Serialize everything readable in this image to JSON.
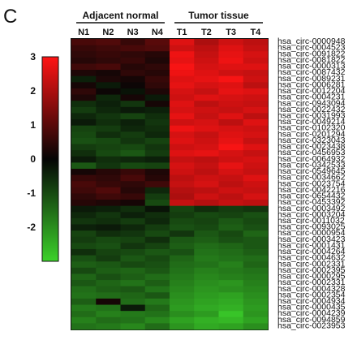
{
  "panel_label": "C",
  "chart_data": {
    "type": "heatmap",
    "title": "",
    "groups": [
      {
        "label": "Adjacent normal",
        "columns": [
          "N1",
          "N2",
          "N3",
          "N4"
        ]
      },
      {
        "label": "Tumor tissue",
        "columns": [
          "T1",
          "T2",
          "T3",
          "T4"
        ]
      }
    ],
    "columns": [
      "N1",
      "N2",
      "N3",
      "N4",
      "T1",
      "T2",
      "T3",
      "T4"
    ],
    "row_labels": [
      "hsa_circ-0000948",
      "hsa_circ-0004523",
      "hsa_circ-0091822",
      "hsa_circ-0081822",
      "hsa_circ-0000313",
      "hsa_circ-0087432",
      "hsa_circ-0089231",
      "hsa_circ-0006281",
      "hsa_circ-0012204",
      "hsa_circ-0004231",
      "hsa_circ-0943094",
      "hsa_circ-0022432",
      "hsa_circ-0031993",
      "hsa_circ-0049214",
      "hsa_circ-0102320",
      "hsa_circ-0201294",
      "hsa_circ-0323043",
      "hsa_circ-0023438",
      "hsa_circ-0456953",
      "hsa_circ-0064932",
      "hsa_circ-0342533",
      "hsa_circ-0549645",
      "hsa_circ-0034662",
      "hsa_circ-0023754",
      "hsa_circ-0042216",
      "hsa_circ-0654432",
      "hsa_circ-0453392",
      "hsa_circ-0003492",
      "hsa_circ-0003204",
      "hsa_circ-0011032",
      "hsa_circ-0093025",
      "hsa_circ-0000954",
      "hsa_circ-0003423",
      "hsa_circ-0001431",
      "hsa_circ-0004264",
      "hsa_circ-0004632",
      "hsa_circ-0002331",
      "hsa_circ-0002395",
      "hsa_circ-0000295",
      "hsa_circ-0002331",
      "hsa_circ-0004328",
      "hsa_circ-0002354",
      "hsa_circ-0004934",
      "hsa_circ-0000435",
      "hsa_circ-0004239",
      "hsa_circ-0094859",
      "hsa_circ-0023953"
    ],
    "values": [
      [
        0.8,
        0.9,
        0.6,
        1.0,
        2.6,
        2.0,
        2.4,
        2.2
      ],
      [
        0.6,
        0.7,
        0.8,
        0.9,
        2.4,
        2.2,
        2.6,
        2.3
      ],
      [
        0.5,
        0.6,
        0.5,
        0.4,
        2.8,
        2.3,
        2.7,
        2.5
      ],
      [
        0.4,
        0.5,
        0.6,
        0.3,
        2.7,
        2.4,
        2.8,
        2.4
      ],
      [
        0.7,
        0.8,
        0.4,
        0.5,
        2.9,
        2.5,
        2.6,
        2.6
      ],
      [
        0.3,
        0.2,
        0.5,
        0.4,
        2.8,
        2.6,
        2.4,
        2.3
      ],
      [
        -0.4,
        0.3,
        0.2,
        0.6,
        2.6,
        2.7,
        2.9,
        2.4
      ],
      [
        0.2,
        -0.3,
        0.1,
        0.5,
        2.7,
        2.5,
        2.6,
        2.2
      ],
      [
        0.5,
        0.1,
        -0.2,
        0.3,
        2.5,
        2.3,
        2.7,
        2.6
      ],
      [
        0.3,
        -0.5,
        0.2,
        -0.3,
        2.4,
        2.6,
        2.5,
        2.4
      ],
      [
        -0.6,
        -0.4,
        -0.7,
        0.2,
        2.6,
        2.2,
        2.4,
        2.3
      ],
      [
        -0.8,
        -0.5,
        -0.3,
        -0.4,
        2.5,
        2.4,
        2.3,
        2.5
      ],
      [
        -0.5,
        -0.7,
        -0.9,
        -0.6,
        2.7,
        2.3,
        2.6,
        2.2
      ],
      [
        -0.3,
        -0.6,
        -0.4,
        -0.7,
        2.4,
        2.5,
        2.2,
        2.6
      ],
      [
        -0.9,
        -0.8,
        -0.5,
        -0.6,
        2.8,
        2.6,
        2.5,
        2.4
      ],
      [
        -1.0,
        -0.6,
        -0.8,
        -0.5,
        2.5,
        2.3,
        2.6,
        2.5
      ],
      [
        -1.1,
        -1.0,
        -0.7,
        -0.9,
        2.6,
        2.4,
        2.7,
        2.3
      ],
      [
        -0.8,
        -0.9,
        -1.0,
        -0.7,
        2.4,
        2.5,
        2.9,
        2.6
      ],
      [
        -0.6,
        -1.0,
        -1.2,
        -0.8,
        2.6,
        2.7,
        2.5,
        2.3
      ],
      [
        -0.3,
        -0.6,
        -0.5,
        -0.4,
        2.3,
        2.2,
        2.4,
        2.5
      ],
      [
        -1.2,
        -0.7,
        -1.0,
        -0.9,
        2.5,
        2.3,
        2.7,
        2.4
      ],
      [
        0.2,
        0.4,
        0.6,
        0.3,
        2.4,
        2.2,
        2.5,
        2.3
      ],
      [
        0.6,
        0.5,
        0.8,
        0.4,
        2.2,
        2.4,
        2.3,
        2.6
      ],
      [
        0.8,
        0.6,
        0.5,
        0.7,
        2.3,
        2.5,
        2.2,
        2.4
      ],
      [
        0.7,
        0.9,
        0.4,
        -0.5,
        2.1,
        2.2,
        2.4,
        2.3
      ],
      [
        0.5,
        0.7,
        0.6,
        -0.8,
        2.0,
        2.4,
        2.2,
        2.5
      ],
      [
        0.4,
        0.3,
        0.2,
        -1.0,
        2.3,
        2.1,
        2.3,
        2.2
      ],
      [
        -0.3,
        -0.4,
        -0.6,
        -0.2,
        -0.9,
        -0.6,
        -0.8,
        -0.7
      ],
      [
        -0.5,
        -0.7,
        -0.4,
        -0.6,
        -0.8,
        -1.0,
        -0.9,
        -1.1
      ],
      [
        -0.7,
        -0.6,
        -0.8,
        -0.5,
        -1.0,
        -0.9,
        -1.2,
        -1.0
      ],
      [
        -0.4,
        -0.3,
        -0.5,
        -0.8,
        -1.1,
        -1.0,
        -1.3,
        -1.1
      ],
      [
        -0.9,
        -0.6,
        -0.7,
        -1.0,
        -0.7,
        -1.2,
        -1.0,
        -1.4
      ],
      [
        -0.8,
        -1.0,
        -0.9,
        -0.6,
        -1.2,
        -1.3,
        -1.1,
        -1.2
      ],
      [
        -1.0,
        -1.1,
        -0.7,
        -0.9,
        -1.3,
        -1.5,
        -1.4,
        -1.2
      ],
      [
        -0.6,
        -0.9,
        -1.0,
        -1.2,
        -1.1,
        -1.6,
        -1.5,
        -1.3
      ],
      [
        -1.1,
        -0.8,
        -1.2,
        -1.0,
        -1.4,
        -1.7,
        -1.6,
        -1.5
      ],
      [
        -1.3,
        -1.2,
        -1.0,
        -1.1,
        -1.5,
        -1.6,
        -1.8,
        -1.4
      ],
      [
        -1.0,
        -1.3,
        -1.4,
        -1.2,
        -1.6,
        -1.8,
        -1.7,
        -1.6
      ],
      [
        -1.4,
        -1.1,
        -1.3,
        -1.5,
        -1.7,
        -1.9,
        -1.8,
        -1.7
      ],
      [
        -1.2,
        -1.4,
        -1.6,
        -1.3,
        -1.8,
        -2.0,
        -2.1,
        -1.8
      ],
      [
        -1.5,
        -1.3,
        -1.2,
        -1.6,
        -1.9,
        -2.1,
        -2.0,
        -1.9
      ],
      [
        -1.6,
        -1.5,
        -1.4,
        -1.2,
        -2.0,
        -2.2,
        -2.3,
        -2.0
      ],
      [
        -1.3,
        0.2,
        -1.5,
        -1.7,
        -2.1,
        -2.3,
        -2.4,
        -2.1
      ],
      [
        -1.7,
        -1.6,
        -0.3,
        -1.4,
        -2.2,
        -2.4,
        -2.5,
        -2.2
      ],
      [
        -1.5,
        -1.8,
        -1.7,
        -1.6,
        -2.0,
        -2.2,
        -2.8,
        -2.1
      ],
      [
        -1.8,
        -1.5,
        -1.6,
        -1.9,
        -2.3,
        -2.5,
        -2.6,
        -2.3
      ],
      [
        -1.6,
        -1.7,
        -1.9,
        -1.5,
        -2.1,
        -2.4,
        -2.3,
        -2.0
      ]
    ],
    "colorbar": {
      "ticks": [
        "3",
        "2",
        "1",
        "0",
        "-1",
        "-2"
      ],
      "min": -3,
      "max": 3,
      "low_color": "#3cd22a",
      "mid_color": "#050505",
      "high_color": "#ff1414"
    }
  }
}
